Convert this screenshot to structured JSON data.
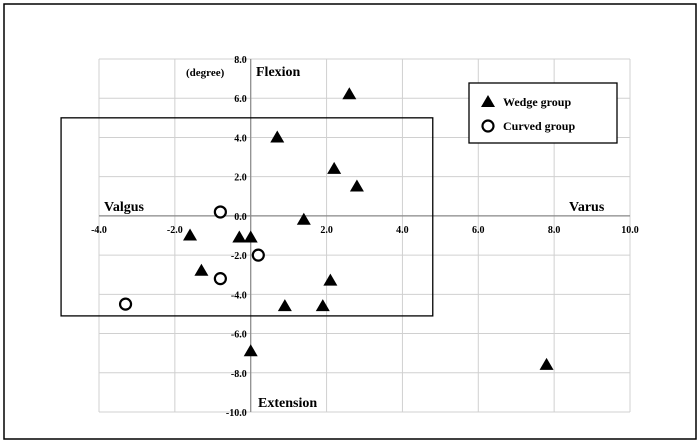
{
  "chart_data": {
    "type": "scatter",
    "title": "",
    "unit_label": "(degree)",
    "quadrant_labels": {
      "top": "Flexion",
      "bottom": "Extension",
      "left": "Valgus",
      "right": "Varus"
    },
    "xlim": [
      -4.0,
      10.0
    ],
    "ylim": [
      -10.0,
      8.0
    ],
    "x_ticks": [
      -4.0,
      -2.0,
      0.0,
      2.0,
      4.0,
      6.0,
      8.0,
      10.0
    ],
    "y_ticks": [
      -10.0,
      -8.0,
      -6.0,
      -4.0,
      -2.0,
      0.0,
      2.0,
      4.0,
      6.0,
      8.0
    ],
    "x_tick_labels": [
      "-4.0",
      "-2.0",
      "0.0",
      "2.0",
      "4.0",
      "6.0",
      "8.0",
      "10.0"
    ],
    "y_tick_labels": [
      "-10.0",
      "-8.0",
      "-6.0",
      "-4.0",
      "-2.0",
      "0.0",
      "2.0",
      "4.0",
      "6.0",
      "8.0"
    ],
    "grid": true,
    "legend_position": "top-right",
    "highlight_box": {
      "x": [
        -5.0,
        4.8
      ],
      "y": [
        -5.1,
        5.0
      ]
    },
    "series": [
      {
        "name": "Wedge group",
        "marker": "filled-triangle",
        "color": "#000000",
        "points": [
          [
            2.6,
            6.2
          ],
          [
            0.7,
            4.0
          ],
          [
            2.2,
            2.4
          ],
          [
            2.8,
            1.5
          ],
          [
            1.4,
            -0.2
          ],
          [
            -1.6,
            -1.0
          ],
          [
            -0.3,
            -1.1
          ],
          [
            0.0,
            -1.1
          ],
          [
            -1.3,
            -2.8
          ],
          [
            2.1,
            -3.3
          ],
          [
            0.9,
            -4.6
          ],
          [
            1.9,
            -4.6
          ],
          [
            0.0,
            -6.9
          ],
          [
            7.8,
            -7.6
          ]
        ]
      },
      {
        "name": "Curved group",
        "marker": "open-circle",
        "color": "#000000",
        "points": [
          [
            -0.8,
            0.2
          ],
          [
            0.2,
            -2.0
          ],
          [
            -0.8,
            -3.2
          ],
          [
            -3.3,
            -4.5
          ]
        ]
      }
    ]
  }
}
